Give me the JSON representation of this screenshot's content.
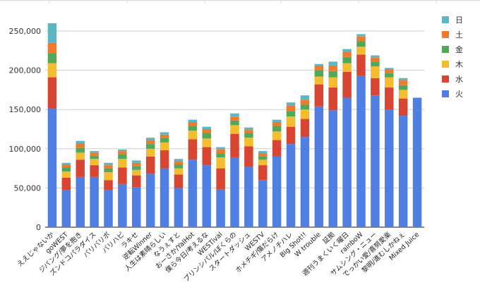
{
  "chart_data": {
    "type": "stacked-bar",
    "title": "",
    "xlabel": "",
    "ylabel": "",
    "ylim": [
      0,
      250000
    ],
    "yticks": [
      0,
      50000,
      100000,
      150000,
      200000,
      250000
    ],
    "ytick_labels": [
      "0",
      "50,000",
      "100,000",
      "150,000",
      "200,000",
      "250,000"
    ],
    "grid": true,
    "legend_position": "right",
    "categories": [
      "ええじゃないか",
      "goWEST",
      "ジパング・おおきに大作戦/夢を抱きしめて",
      "ズンドコ パラダイス",
      "バリバリBODY",
      "バリハピ",
      "ラキセ",
      "逆転Winner",
      "人生は素晴らしい",
      "なうぇすと",
      "おーさか☆愛・EYE・哀/Ya! Hot! Hot!",
      "僕ら今日も生きている/考えるな",
      "WESTival",
      "プリンシパルの君へ/ぼくらのあしあと",
      "スタートダッシュ!",
      "WESTV",
      "ホメチギリスト/間違っちゃいない/傷だらけの愛",
      "アメノチハレ",
      "Big Shot!!",
      "W trouble",
      "証拠",
      "週刊うまくいく曜日",
      "rainboW",
      "サムシング・ニュー",
      "でっかい愛/喜努愛楽",
      "黎明/進むしかねぇ",
      "Mixed Juice"
    ],
    "tick_labels": [
      "ええじゃないか",
      "goWEST",
      "ジパング/夢を抱き",
      "ズンドコパラダイス",
      "バリバリボ",
      "バリハピ",
      "ラキセ",
      "逆転Winner",
      "人生は素晴らしい",
      "なうぇすと",
      "おーさか/YaIHot",
      "僕ら今日/考えるな",
      "WESTival",
      "プリンシパル/ぼくらの",
      "スタートダッシュ",
      "WESTV",
      "ホメチギ/傷だらけ",
      "アメノチハレ",
      "Big Shot!!",
      "W trouble",
      "証拠",
      "週刊うまくいく曜日",
      "rainboW",
      "サムシング・ニュー",
      "でっかい愛/喜努愛楽",
      "黎明/進むしかねぇ",
      "Mixed Juice"
    ],
    "series": [
      {
        "name": "火",
        "color": "#4f7fe3",
        "values": [
          151000,
          47000,
          64000,
          64000,
          47000,
          55000,
          51000,
          68000,
          75000,
          50000,
          86000,
          79000,
          48000,
          89000,
          77000,
          60000,
          90000,
          106000,
          115000,
          154000,
          149000,
          165000,
          193000,
          168000,
          150000,
          142000,
          165000
        ]
      },
      {
        "name": "水",
        "color": "#d84533",
        "values": [
          40000,
          16000,
          22000,
          15000,
          13000,
          21000,
          15000,
          22000,
          23000,
          17000,
          26000,
          23000,
          27000,
          30000,
          26000,
          19000,
          21000,
          22000,
          23000,
          28000,
          29000,
          33000,
          27000,
          22000,
          28000,
          22000,
          0
        ]
      },
      {
        "name": "木",
        "color": "#f4bc2f",
        "values": [
          18000,
          8000,
          9000,
          8000,
          10000,
          11000,
          7000,
          10000,
          10000,
          8000,
          11000,
          11000,
          14000,
          11000,
          11000,
          7000,
          11000,
          13000,
          12000,
          10000,
          13000,
          11000,
          10000,
          15000,
          13000,
          11000,
          0
        ]
      },
      {
        "name": "金",
        "color": "#50a85a",
        "values": [
          13000,
          5000,
          6000,
          4000,
          5000,
          6000,
          5000,
          6000,
          6000,
          5000,
          6000,
          7000,
          5000,
          6000,
          6000,
          4000,
          7000,
          7000,
          6000,
          8000,
          8000,
          8000,
          7000,
          6000,
          5000,
          6000,
          0
        ]
      },
      {
        "name": "土",
        "color": "#f07a2c",
        "values": [
          13000,
          4000,
          6000,
          4000,
          4000,
          4000,
          4000,
          5000,
          4000,
          4000,
          5000,
          5000,
          5000,
          5000,
          4000,
          4000,
          5000,
          7000,
          6000,
          6000,
          7000,
          7000,
          6000,
          5000,
          5000,
          6000,
          0
        ]
      },
      {
        "name": "日",
        "color": "#5bb7c4",
        "values": [
          25000,
          2000,
          3000,
          2000,
          3000,
          2000,
          3000,
          3000,
          3000,
          3000,
          3000,
          3000,
          3000,
          4000,
          3000,
          3000,
          3000,
          4000,
          6000,
          2000,
          5000,
          3000,
          3000,
          3000,
          2000,
          3000,
          0
        ]
      }
    ]
  }
}
